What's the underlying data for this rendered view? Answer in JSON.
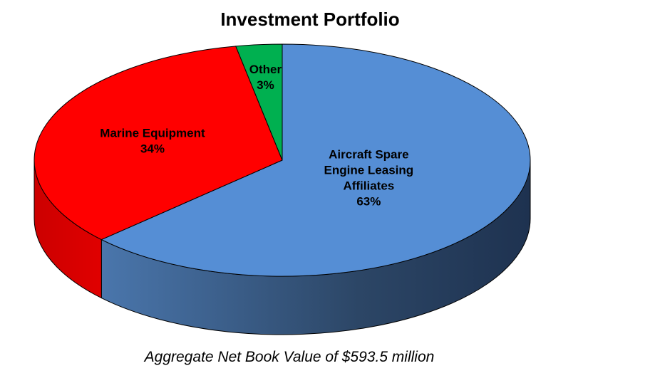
{
  "chart_data": {
    "type": "pie",
    "title": "Investment Portfolio",
    "caption": "Aggregate Net Book Value of $593.5 million",
    "slices": [
      {
        "label_lines": [
          "Aircraft Spare",
          "Engine Leasing",
          "Affiliates"
        ],
        "pct_label": "63%",
        "value": 63,
        "color": "#558ED5"
      },
      {
        "label_lines": [
          "Marine Equipment"
        ],
        "pct_label": "34%",
        "value": 34,
        "color": "#FF0000"
      },
      {
        "label_lines": [
          "Other"
        ],
        "pct_label": "3%",
        "value": 3,
        "color": "#00B050"
      }
    ],
    "style": "3d",
    "legend": "none"
  }
}
